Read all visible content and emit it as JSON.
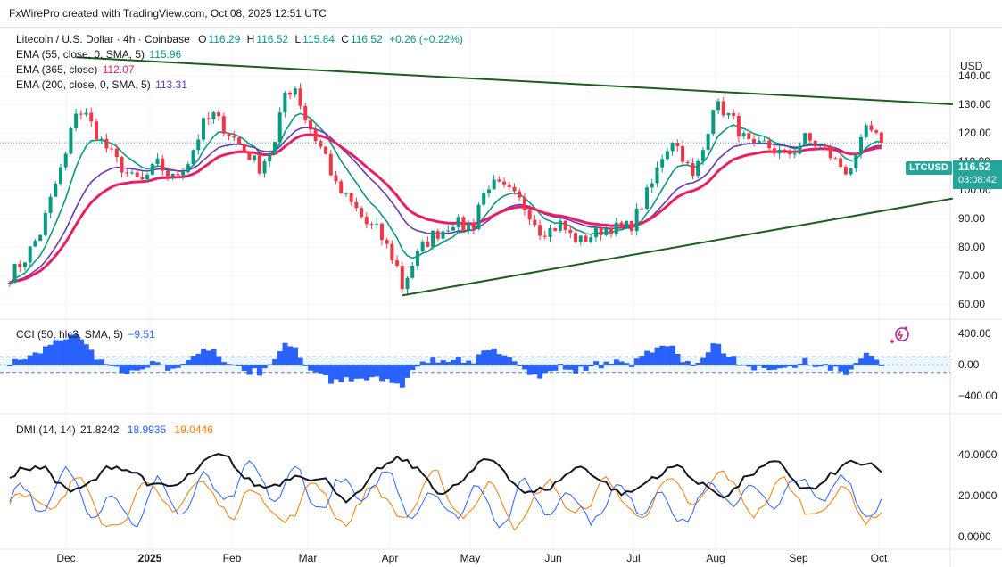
{
  "header": {
    "text": "FxWirePro created with TradingView.com, Oct 08, 2025 12:51 UTC"
  },
  "currency": "USD",
  "symbol_legend": {
    "name": "Litecoin / U.S. Dollar · 4h · Coinbase",
    "open_label": "O",
    "open": "116.29",
    "high_label": "H",
    "high": "116.52",
    "low_label": "L",
    "low": "115.84",
    "close_label": "C",
    "close": "116.52",
    "change": "+0.26 (+0.22%)"
  },
  "indicators": {
    "ema55": {
      "label": "EMA (55, close, 0, SMA, 5)",
      "value": "115.96",
      "color": "#089981"
    },
    "ema365": {
      "label": "EMA (365, close)",
      "value": "112.07",
      "color": "#e91e63"
    },
    "ema200": {
      "label": "EMA (200, close, 0, SMA, 5)",
      "value": "113.31",
      "color": "#673ab7"
    },
    "cci": {
      "label": "CCI (50, hlc3, SMA, 5)",
      "value": "−9.51",
      "color": "#2962ff"
    },
    "dmi": {
      "label": "DMI (14, 14)",
      "adx": "21.8242",
      "plus_di": "18.9935",
      "minus_di": "19.0446",
      "adx_color": "#131722",
      "plus_color": "#2962ff",
      "minus_color": "#f57c00"
    }
  },
  "price_tag": {
    "symbol": "LTCUSD",
    "price": "116.52",
    "countdown": "03:08:42",
    "color": "#26a69a"
  },
  "colors": {
    "up": "#089981",
    "down": "#f23645",
    "trendline": "#1b5e20",
    "grid": "#f0f3fa"
  },
  "chart_data": {
    "type": "candlestick",
    "title": "Litecoin / U.S. Dollar · 4h · Coinbase",
    "x_ticks": [
      "Dec",
      "2025",
      "Feb",
      "Mar",
      "Apr",
      "May",
      "Jun",
      "Jul",
      "Aug",
      "Sep",
      "Oct"
    ],
    "price_axis": {
      "ticks": [
        "60.00",
        "70.00",
        "80.00",
        "90.00",
        "100.00",
        "110.00",
        "120.00",
        "130.00",
        "140.00"
      ],
      "ylim": [
        56,
        148
      ]
    },
    "cci_axis": {
      "ticks": [
        "400.00",
        "0.00",
        "−400.00"
      ],
      "ylim": [
        -520,
        520
      ]
    },
    "dmi_axis": {
      "ticks": [
        "40.0000",
        "20.0000",
        "0.0000"
      ],
      "ylim": [
        -1,
        55
      ]
    },
    "price_path": [
      [
        0,
        70
      ],
      [
        3,
        76
      ],
      [
        6,
        85
      ],
      [
        9,
        102
      ],
      [
        11,
        112
      ],
      [
        13,
        128
      ],
      [
        15,
        126
      ],
      [
        18,
        117
      ],
      [
        21,
        110
      ],
      [
        24,
        104
      ],
      [
        26,
        103
      ],
      [
        29,
        109
      ],
      [
        32,
        104
      ],
      [
        35,
        110
      ],
      [
        38,
        123
      ],
      [
        40,
        126
      ],
      [
        42,
        122
      ],
      [
        44,
        118
      ],
      [
        46,
        114
      ],
      [
        49,
        108
      ],
      [
        52,
        116
      ],
      [
        54,
        134
      ],
      [
        56,
        136
      ],
      [
        58,
        125
      ],
      [
        60,
        118
      ],
      [
        62,
        112
      ],
      [
        64,
        101
      ],
      [
        66,
        97
      ],
      [
        68,
        93
      ],
      [
        70,
        88
      ],
      [
        72,
        86
      ],
      [
        74,
        80
      ],
      [
        76,
        73
      ],
      [
        77,
        66
      ],
      [
        79,
        74
      ],
      [
        81,
        80
      ],
      [
        83,
        84
      ],
      [
        85,
        86
      ],
      [
        87,
        89
      ],
      [
        89,
        87
      ],
      [
        91,
        88
      ],
      [
        92,
        95
      ],
      [
        94,
        102
      ],
      [
        96,
        101
      ],
      [
        98,
        99
      ],
      [
        100,
        96
      ],
      [
        102,
        92
      ],
      [
        104,
        86
      ],
      [
        106,
        86
      ],
      [
        108,
        88
      ],
      [
        110,
        84
      ],
      [
        112,
        82
      ],
      [
        114,
        84
      ],
      [
        116,
        86
      ],
      [
        118,
        87
      ],
      [
        120,
        86
      ],
      [
        122,
        88
      ],
      [
        124,
        95
      ],
      [
        126,
        102
      ],
      [
        128,
        112
      ],
      [
        130,
        118
      ],
      [
        132,
        112
      ],
      [
        134,
        104
      ],
      [
        136,
        114
      ],
      [
        138,
        130
      ],
      [
        140,
        128
      ],
      [
        142,
        124
      ],
      [
        144,
        118
      ],
      [
        146,
        114
      ],
      [
        148,
        116
      ],
      [
        150,
        114
      ],
      [
        152,
        112
      ],
      [
        154,
        114
      ],
      [
        156,
        118
      ],
      [
        158,
        116
      ],
      [
        160,
        114
      ],
      [
        162,
        110
      ],
      [
        164,
        107
      ],
      [
        166,
        110
      ],
      [
        167,
        116
      ],
      [
        168,
        122
      ],
      [
        169,
        119
      ],
      [
        170,
        118
      ],
      [
        171,
        116.5
      ]
    ],
    "trendlines": [
      {
        "name": "upper",
        "from": [
          13,
          146.5
        ],
        "to": [
          185,
          130
        ]
      },
      {
        "name": "lower",
        "from": [
          77,
          63
        ],
        "to": [
          185,
          97
        ]
      }
    ],
    "ema": [
      {
        "name": "EMA 55",
        "value": 115.96
      },
      {
        "name": "EMA 365",
        "value": 112.07
      },
      {
        "name": "EMA 200",
        "value": 113.31
      }
    ],
    "cci_levels": [
      100,
      -100
    ],
    "ltcusd_last": 116.52
  }
}
